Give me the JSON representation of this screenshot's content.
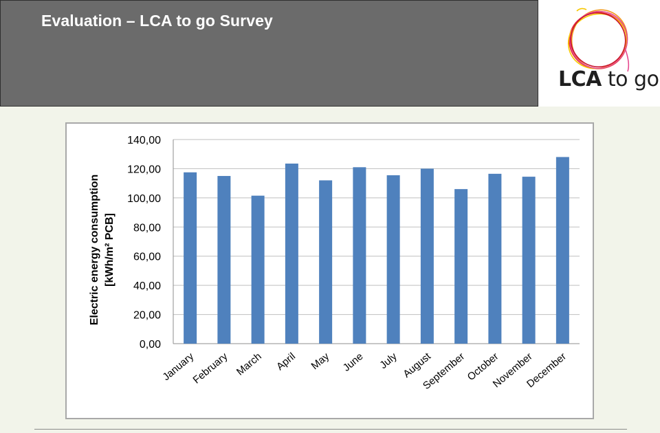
{
  "header": {
    "title": "Evaluation – LCA to go Survey"
  },
  "logo": {
    "text_bold": "LCA",
    "text_light": " to go",
    "ring_colors": [
      "#e8312f",
      "#f29a1d",
      "#f7c700",
      "#e64a8f",
      "#c8102e"
    ]
  },
  "colors": {
    "bar": "#4f81bd",
    "header_bg": "#6b6b6b",
    "gridline": "#bfbfbf"
  },
  "chart_data": {
    "type": "bar",
    "title": "",
    "xlabel": "",
    "ylabel_line1": "Electric energy consumption",
    "ylabel_line2": "[kWh/m² PCB]",
    "ylim": [
      0,
      140
    ],
    "y_ticks": [
      0,
      20,
      40,
      60,
      80,
      100,
      120,
      140
    ],
    "y_tick_labels": [
      "0,00",
      "20,00",
      "40,00",
      "60,00",
      "80,00",
      "100,00",
      "120,00",
      "140,00"
    ],
    "grid": true,
    "categories": [
      "January",
      "February",
      "March",
      "April",
      "May",
      "June",
      "July",
      "August",
      "September",
      "October",
      "November",
      "December"
    ],
    "values": [
      117.5,
      115,
      101.5,
      123.5,
      112,
      121,
      115.5,
      120,
      106,
      116.5,
      114.5,
      128
    ]
  }
}
